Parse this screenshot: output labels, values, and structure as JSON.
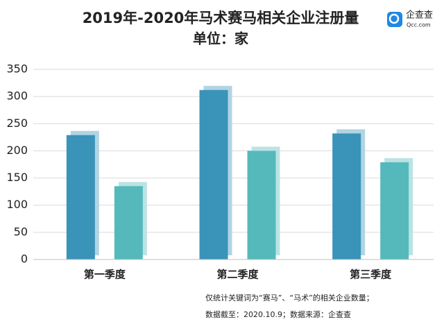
{
  "chart_data": {
    "type": "bar",
    "title": "2019年-2020年马术赛马相关企业注册量",
    "subtitle": "单位：家",
    "categories": [
      "第一季度",
      "第二季度",
      "第三季度"
    ],
    "series": [
      {
        "color": "#3a93b8",
        "values": [
          229,
          312,
          232
        ]
      },
      {
        "color": "#55b9bb",
        "values": [
          135,
          200,
          179
        ]
      }
    ],
    "ylim": [
      0,
      350
    ],
    "yticks": [
      0,
      50,
      100,
      150,
      200,
      250,
      300,
      350
    ],
    "grid": true
  },
  "logo": {
    "name": "企查查",
    "domain": "Qcc.com"
  },
  "notes": [
    "仅统计关键词为“赛马”、“马术”的相关企业数量；",
    "数据截至：2020.10.9；数据来源：企查查"
  ]
}
